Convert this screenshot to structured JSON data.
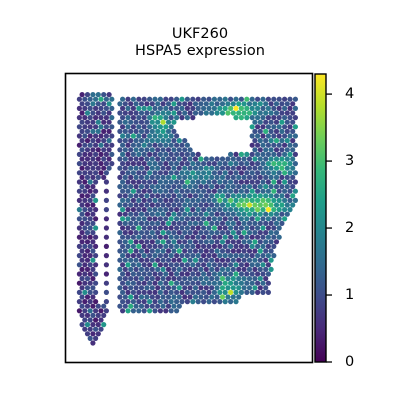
{
  "chart_data": {
    "type": "scatter",
    "subtype": "spatial-hexagonal-spot-map",
    "title": "UKF260",
    "subtitle": "HSPA5 expression",
    "xlabel": "",
    "ylabel": "",
    "grid": false,
    "frame": true,
    "colormap": "viridis",
    "value_range": [
      0,
      4.3
    ],
    "colorbar": {
      "ticks": [
        0,
        1,
        2,
        3,
        4
      ],
      "tick_labels": [
        "0",
        "1",
        "2",
        "3",
        "4"
      ]
    },
    "expression_summary": {
      "background_level": 0.9,
      "hotspot_level": 4.2,
      "high_regions": [
        "upper-right band",
        "right-middle streaks",
        "lower-center patch",
        "upper-left top edge"
      ]
    }
  },
  "colors": {
    "viridis_stops": [
      "#440154",
      "#482878",
      "#3e4a89",
      "#31688e",
      "#26828e",
      "#1f9e89",
      "#35b779",
      "#6ece58",
      "#b5de2b",
      "#fde725"
    ],
    "frame": "#000000",
    "background": "#ffffff"
  }
}
